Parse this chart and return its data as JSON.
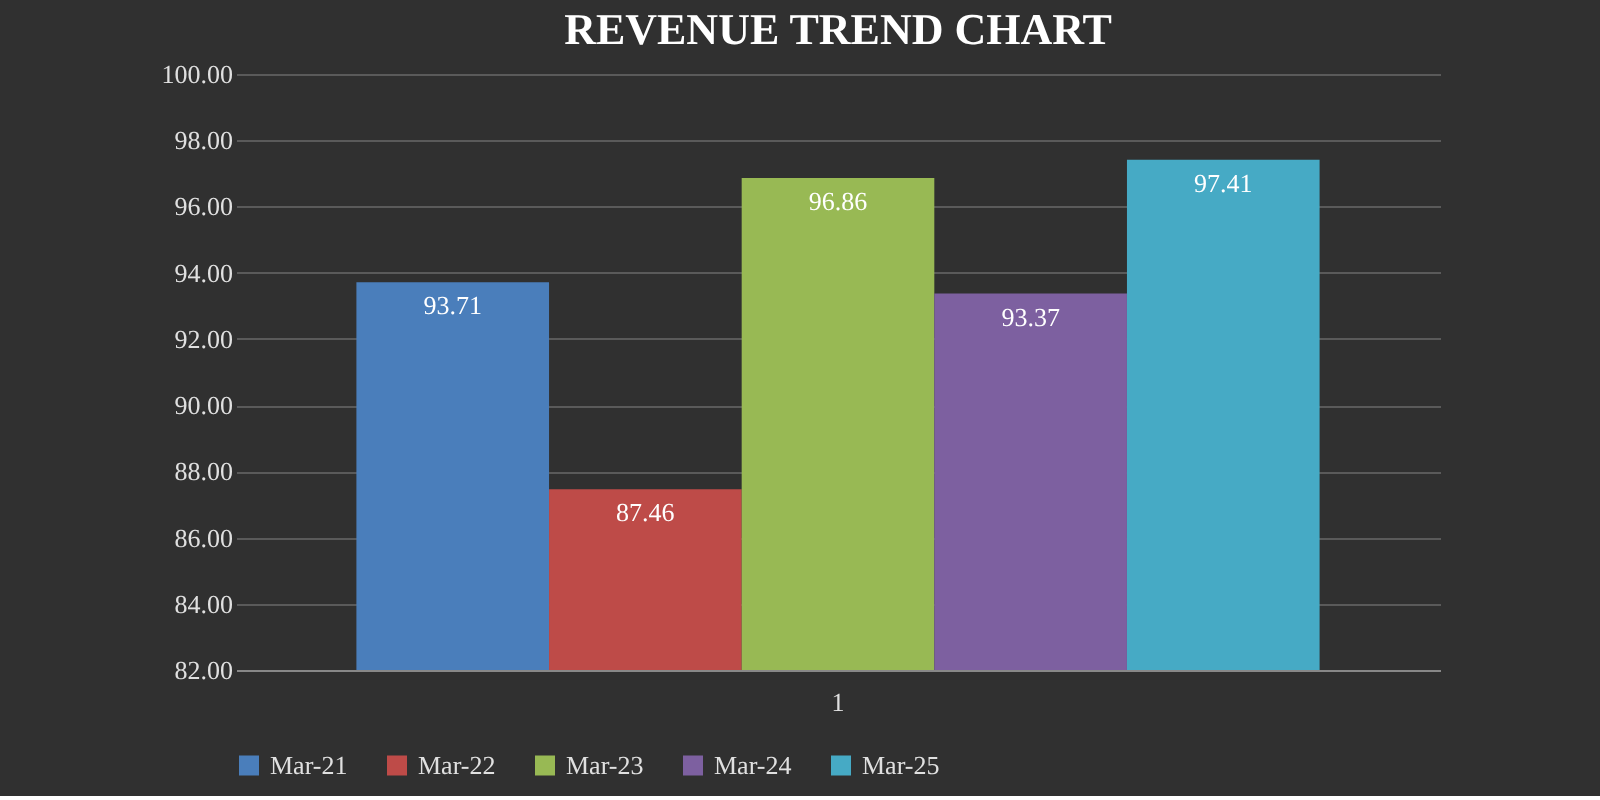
{
  "chart_data": {
    "type": "bar",
    "title": "REVENUE TREND CHART",
    "categories": [
      "1"
    ],
    "series": [
      {
        "name": "Mar-21",
        "color": "#4a7ebb",
        "values": [
          93.71
        ]
      },
      {
        "name": "Mar-22",
        "color": "#be4b48",
        "values": [
          87.46
        ]
      },
      {
        "name": "Mar-23",
        "color": "#98b954",
        "values": [
          96.86
        ]
      },
      {
        "name": "Mar-24",
        "color": "#7d60a0",
        "values": [
          93.37
        ]
      },
      {
        "name": "Mar-25",
        "color": "#46aac5",
        "values": [
          97.41
        ]
      }
    ],
    "ylim": [
      82,
      100
    ],
    "yticks": [
      {
        "value": 82,
        "label": "82.00"
      },
      {
        "value": 84,
        "label": "84.00"
      },
      {
        "value": 86,
        "label": "86.00"
      },
      {
        "value": 88,
        "label": "88.00"
      },
      {
        "value": 90,
        "label": "90.00"
      },
      {
        "value": 92,
        "label": "92.00"
      },
      {
        "value": 94,
        "label": "94.00"
      },
      {
        "value": 96,
        "label": "96.00"
      },
      {
        "value": 98,
        "label": "98.00"
      },
      {
        "value": 100,
        "label": "100.00"
      }
    ],
    "grid": "y",
    "legend": "bottom",
    "data_labels": true
  }
}
